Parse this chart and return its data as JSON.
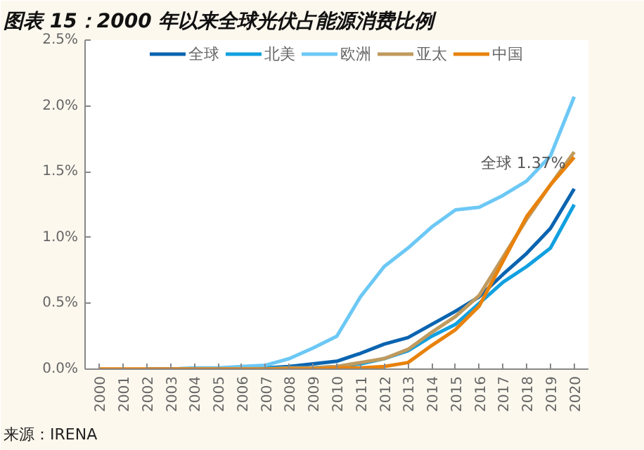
{
  "chart_data": {
    "type": "line",
    "title": "图表 15：2000 年以来全球光伏占能源消费比例",
    "categories": [
      "2000",
      "2001",
      "2002",
      "2003",
      "2004",
      "2005",
      "2006",
      "2007",
      "2008",
      "2009",
      "2010",
      "2011",
      "2012",
      "2013",
      "2014",
      "2015",
      "2016",
      "2017",
      "2018",
      "2019",
      "2020"
    ],
    "series": [
      {
        "name": "全球",
        "color": "#0a64b0",
        "values": [
          null,
          null,
          null,
          0,
          0,
          0,
          0.01,
          0.01,
          0.02,
          0.04,
          0.06,
          0.12,
          0.19,
          0.24,
          0.34,
          0.44,
          0.55,
          0.72,
          0.88,
          1.07,
          1.37
        ]
      },
      {
        "name": "北美",
        "color": "#11a0e0",
        "values": [
          null,
          null,
          0,
          0,
          0,
          0,
          0,
          0.01,
          0.01,
          0.01,
          0.02,
          0.04,
          0.08,
          0.14,
          0.25,
          0.34,
          0.5,
          0.66,
          0.78,
          0.92,
          1.25
        ]
      },
      {
        "name": "欧洲",
        "color": "#6cc8f5",
        "values": [
          null,
          null,
          0,
          0,
          0.01,
          0.01,
          0.02,
          0.03,
          0.08,
          0.16,
          0.25,
          0.55,
          0.78,
          0.92,
          1.08,
          1.21,
          1.23,
          1.32,
          1.43,
          1.62,
          2.07
        ]
      },
      {
        "name": "亚太",
        "color": "#c09a5e",
        "values": [
          0,
          0,
          0,
          0,
          0,
          0,
          0,
          0,
          0.01,
          0.01,
          0.02,
          0.05,
          0.08,
          0.15,
          0.28,
          0.4,
          0.56,
          0.85,
          1.14,
          1.4,
          1.65
        ]
      },
      {
        "name": "中国",
        "color": "#e8820c",
        "values": [
          0,
          0,
          0,
          0,
          0,
          0,
          0,
          0,
          0,
          0,
          0.01,
          0.01,
          0.02,
          0.05,
          0.18,
          0.3,
          0.48,
          0.82,
          1.16,
          1.4,
          1.61
        ]
      }
    ],
    "ylim": [
      0,
      2.5
    ],
    "yticks": [
      {
        "value": 0,
        "label": "0.0%"
      },
      {
        "value": 0.5,
        "label": "0.5%"
      },
      {
        "value": 1,
        "label": "1.0%"
      },
      {
        "value": 1.5,
        "label": "1.5%"
      },
      {
        "value": 2,
        "label": "2.0%"
      },
      {
        "value": 2.5,
        "label": "2.5%"
      }
    ],
    "annotations": [
      {
        "text": "全球 1.37%",
        "x": "2020",
        "y": 1.37
      },
      "来源：IRENA"
    ],
    "legend": "top",
    "grid": false,
    "marker": "none",
    "line_style": "solid"
  }
}
